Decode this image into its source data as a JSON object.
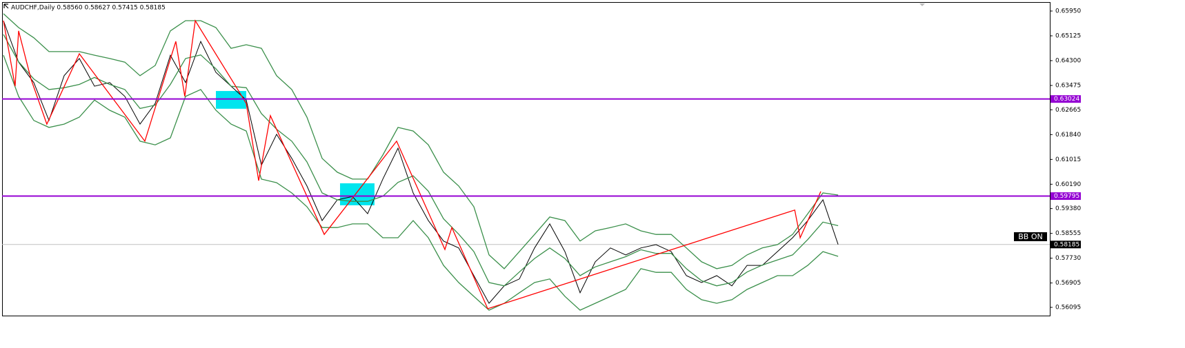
{
  "chart_data": {
    "type": "line",
    "title": "AUDCHF,Daily  0.58560 0.58627 0.57415 0.58185",
    "ylim": [
      0.5582,
      0.66225
    ],
    "xlim": [
      -0.09,
      68.95
    ],
    "yticks": [
      {
        "value": 0.6595,
        "label": "0.65950"
      },
      0.65125,
      {
        "value": 0.643,
        "label": "0.64300"
      },
      0.63475,
      0.62665,
      {
        "value": 0.6184,
        "label": "0.61840"
      },
      0.61015,
      {
        "value": 0.6019,
        "label": "0.60190"
      },
      {
        "value": 0.5938,
        "label": "0.59380"
      },
      0.58555,
      {
        "value": 0.5773,
        "label": "0.57730"
      },
      0.56905,
      0.56095
    ],
    "series": [
      {
        "color": "#000000",
        "values": [
          0.6563,
          0.6425,
          0.6357,
          0.6231,
          0.638,
          0.6437,
          0.6345,
          0.6357,
          0.6311,
          0.6219,
          0.6288,
          0.6448,
          0.6357,
          0.6494,
          0.6391,
          0.6345,
          0.6299,
          0.6082,
          0.6185,
          0.6105,
          0.6013,
          0.5898,
          0.5967,
          0.5978,
          0.5921,
          0.6036,
          0.6139,
          0.599,
          0.5898,
          0.583,
          0.5807,
          0.5715,
          0.5623,
          0.5681,
          0.5704,
          0.5807,
          0.5887,
          0.5795,
          0.5658,
          0.5761,
          0.5807,
          0.5784,
          0.5807,
          0.5818,
          0.5795,
          0.5715,
          0.5692,
          0.5715,
          0.5681,
          0.5749,
          0.5749,
          0.5795,
          0.5841,
          0.5898,
          0.5967,
          0.58185
        ]
      },
      {
        "color": "#3a8f4a",
        "values": [
          0.6586,
          0.654,
          0.6506,
          0.646,
          0.646,
          0.646,
          0.6448,
          0.6437,
          0.6425,
          0.638,
          0.6414,
          0.6529,
          0.6563,
          0.6563,
          0.654,
          0.6471,
          0.6483,
          0.6471,
          0.638,
          0.6334,
          0.6242,
          0.6105,
          0.6059,
          0.6036,
          0.6036,
          0.6116,
          0.6208,
          0.6196,
          0.615,
          0.6059,
          0.6013,
          0.5944,
          0.5784,
          0.5738,
          0.5795,
          0.5852,
          0.591,
          0.5898,
          0.583,
          0.5864,
          0.5875,
          0.5887,
          0.5864,
          0.5852,
          0.5852,
          0.5807,
          0.5761,
          0.5738,
          0.5749,
          0.5784,
          0.5807,
          0.5818,
          0.5852,
          0.5921,
          0.599,
          0.5983
        ]
      },
      {
        "color": "#3a8f4a",
        "values": [
          0.6517,
          0.6426,
          0.6369,
          0.6334,
          0.634,
          0.6351,
          0.6374,
          0.6351,
          0.6334,
          0.6271,
          0.6282,
          0.6351,
          0.6437,
          0.6449,
          0.6403,
          0.6345,
          0.634,
          0.6254,
          0.6202,
          0.6162,
          0.6093,
          0.599,
          0.5967,
          0.5962,
          0.5962,
          0.5979,
          0.6025,
          0.6047,
          0.5996,
          0.5904,
          0.5853,
          0.5795,
          0.5692,
          0.5681,
          0.5727,
          0.5772,
          0.5807,
          0.5772,
          0.5715,
          0.5744,
          0.5761,
          0.5778,
          0.5801,
          0.5789,
          0.5789,
          0.5738,
          0.5698,
          0.5681,
          0.5692,
          0.5727,
          0.575,
          0.5767,
          0.5784,
          0.5835,
          0.5893,
          0.5881
        ]
      },
      {
        "color": "#3a8f4a",
        "values": [
          0.6448,
          0.6311,
          0.6231,
          0.6208,
          0.6219,
          0.6242,
          0.6299,
          0.6265,
          0.6242,
          0.6162,
          0.615,
          0.6173,
          0.6311,
          0.6334,
          0.6265,
          0.6219,
          0.6196,
          0.6036,
          0.6024,
          0.599,
          0.5944,
          0.5875,
          0.5875,
          0.5887,
          0.5887,
          0.5841,
          0.5841,
          0.5898,
          0.5841,
          0.5749,
          0.5692,
          0.5646,
          0.56,
          0.5623,
          0.5658,
          0.5692,
          0.5704,
          0.5646,
          0.56,
          0.5623,
          0.5646,
          0.5669,
          0.5738,
          0.5726,
          0.5726,
          0.5669,
          0.5635,
          0.5623,
          0.5635,
          0.5669,
          0.5692,
          0.5715,
          0.5715,
          0.5749,
          0.5795,
          0.5779
        ]
      }
    ],
    "zigzag": {
      "color": "#ff0000",
      "x": [
        0,
        0.77,
        1,
        1.82,
        2.86,
        5,
        9.32,
        11.36,
        11.95,
        12.64,
        16,
        16.82,
        17.59,
        21.14,
        25.91,
        29.09,
        29.55,
        31.91,
        52.14,
        52.5,
        53.86
      ],
      "values": [
        0.6563,
        0.6345,
        0.6529,
        0.6368,
        0.6219,
        0.6453,
        0.6162,
        0.6494,
        0.6311,
        0.6563,
        0.6288,
        0.6031,
        0.6247,
        0.5852,
        0.6162,
        0.5802,
        0.5875,
        0.5605,
        0.5933,
        0.5841,
        0.5995
      ]
    },
    "zones": [
      {
        "color": "#00e5ee",
        "x": [
          14,
          16
        ],
        "y": [
          0.6329,
          0.627
        ]
      },
      {
        "color": "#00e5ee",
        "x": [
          22.18,
          24.45
        ],
        "y": [
          0.6022,
          0.5949
        ]
      }
    ],
    "levels": [
      {
        "value": 0.63024,
        "color": "#9400d3"
      },
      {
        "value": 0.59795,
        "color": "#9400d3"
      }
    ],
    "price_line": {
      "value": 0.58185,
      "color": "#c0c0c0"
    },
    "indicator_label": "BB ON"
  }
}
